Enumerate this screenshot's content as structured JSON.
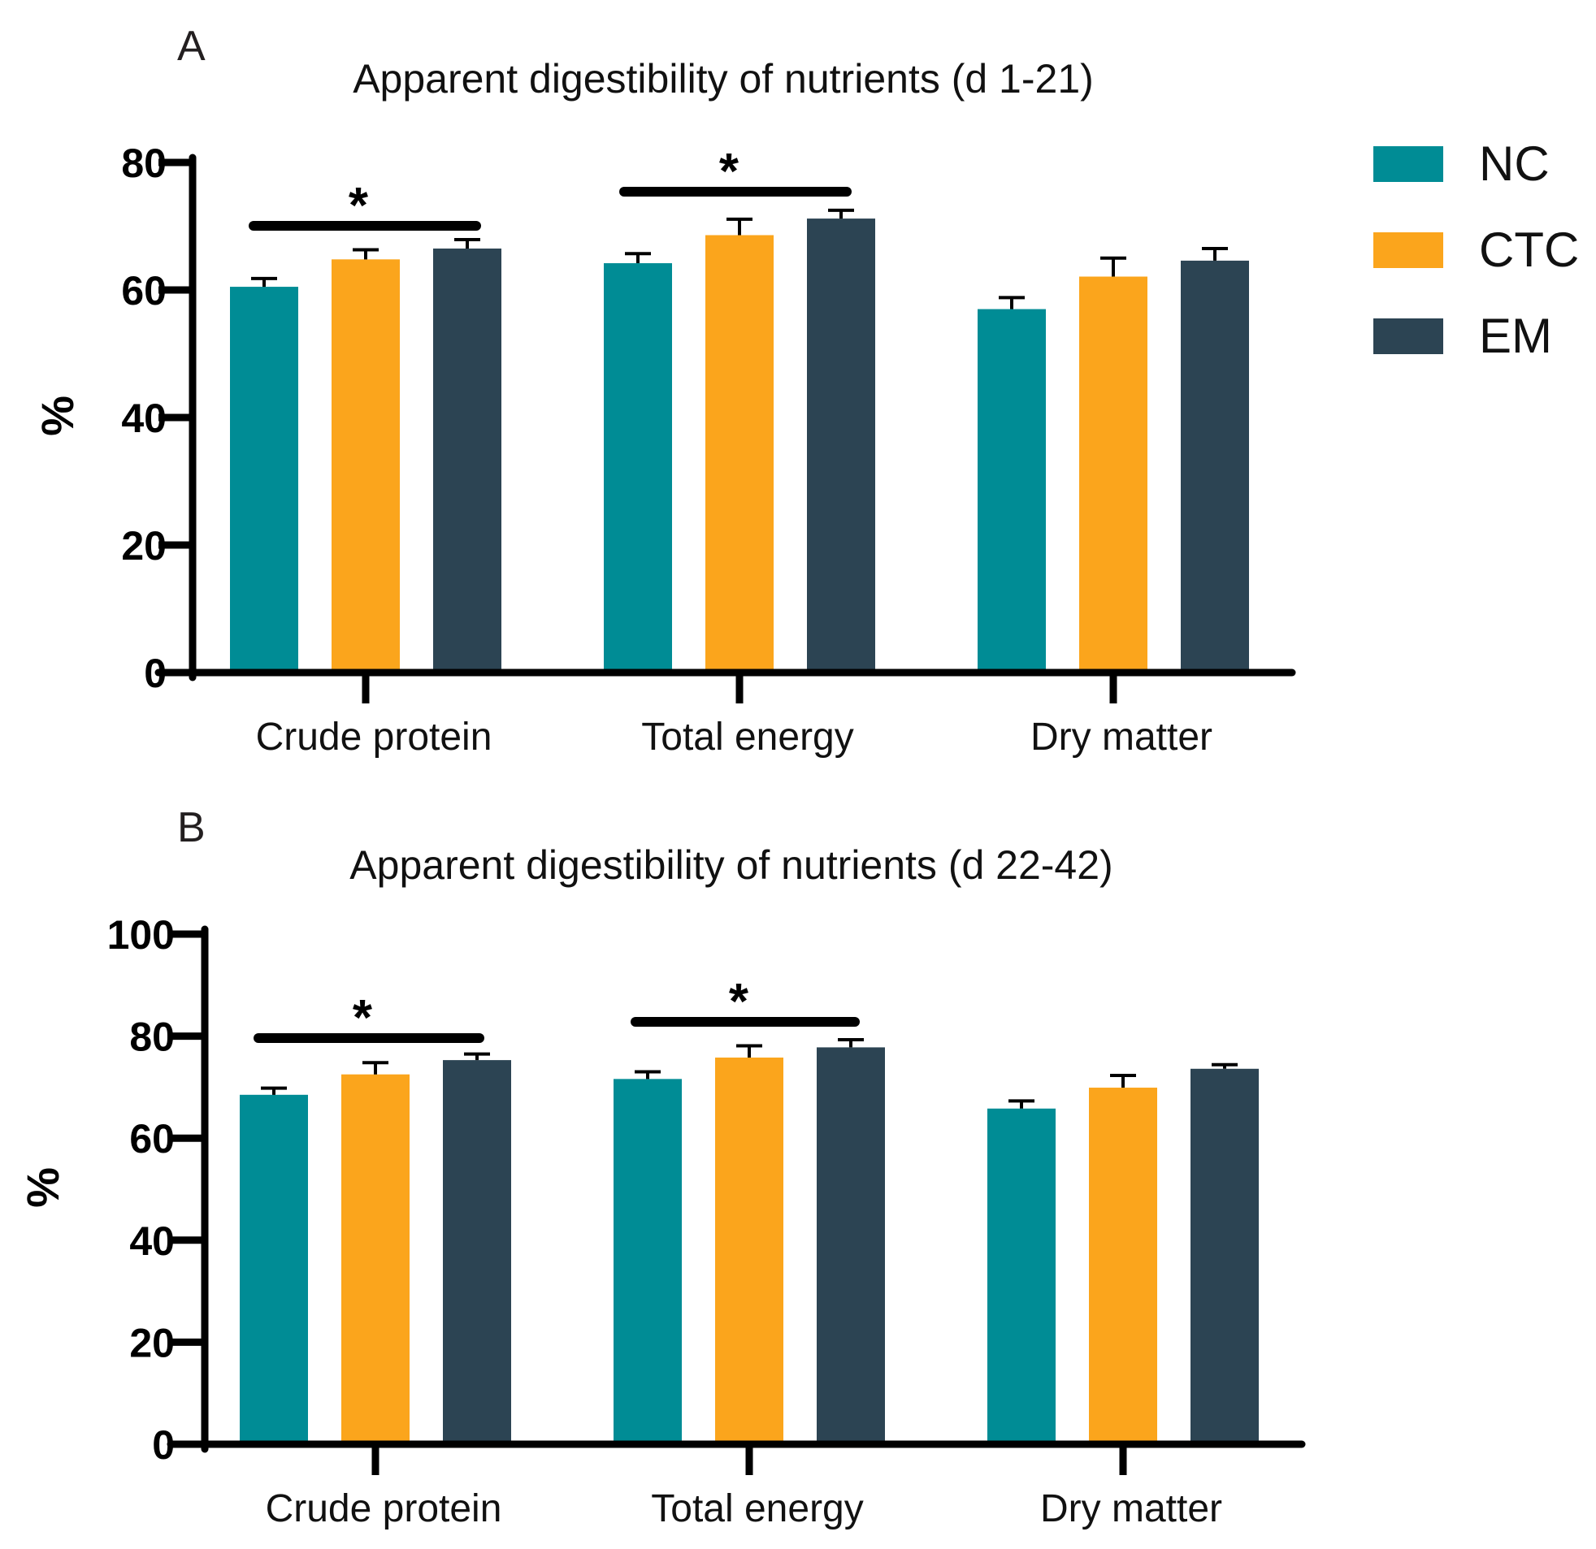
{
  "legend": {
    "items": [
      {
        "name": "NC",
        "color": "#008c95"
      },
      {
        "name": "CTC",
        "color": "#fba51c"
      },
      {
        "name": "EM",
        "color": "#2c4453"
      }
    ]
  },
  "chart_data": [
    {
      "type": "bar",
      "panel": "A",
      "title": "Apparent digestibility of nutrients (d 1-21)",
      "xlabel": "",
      "ylabel": "%",
      "ylim": [
        0,
        80
      ],
      "yticks": [
        "0",
        "20",
        "40",
        "60",
        "80"
      ],
      "categories": [
        "Crude protein",
        "Total energy",
        "Dry matter"
      ],
      "series": [
        {
          "name": "NC",
          "values": [
            60.5,
            64.2,
            57.0
          ],
          "error": [
            1.3,
            1.5,
            1.8
          ]
        },
        {
          "name": "CTC",
          "values": [
            64.8,
            68.6,
            62.1
          ],
          "error": [
            1.5,
            2.5,
            2.9
          ]
        },
        {
          "name": "EM",
          "values": [
            66.5,
            71.2,
            64.6
          ],
          "error": [
            1.4,
            1.3,
            1.9
          ]
        }
      ],
      "significance": [
        {
          "category": "Crude protein",
          "label": "*"
        },
        {
          "category": "Total energy",
          "label": "*"
        }
      ],
      "grid": false,
      "legend_position": "right"
    },
    {
      "type": "bar",
      "panel": "B",
      "title": "Apparent digestibility of nutrients (d 22-42)",
      "xlabel": "",
      "ylabel": "%",
      "ylim": [
        0,
        100
      ],
      "yticks": [
        "0",
        "20",
        "40",
        "60",
        "80",
        "100"
      ],
      "categories": [
        "Crude protein",
        "Total energy",
        "Dry matter"
      ],
      "series": [
        {
          "name": "NC",
          "values": [
            68.5,
            71.6,
            65.8
          ],
          "error": [
            1.3,
            1.4,
            1.5
          ]
        },
        {
          "name": "CTC",
          "values": [
            72.5,
            75.8,
            69.9
          ],
          "error": [
            2.3,
            2.3,
            2.4
          ]
        },
        {
          "name": "EM",
          "values": [
            75.3,
            77.8,
            73.6
          ],
          "error": [
            1.2,
            1.5,
            0.8
          ]
        }
      ],
      "significance": [
        {
          "category": "Crude protein",
          "label": "*"
        },
        {
          "category": "Total energy",
          "label": "*"
        }
      ],
      "grid": false,
      "legend_position": "right"
    }
  ]
}
